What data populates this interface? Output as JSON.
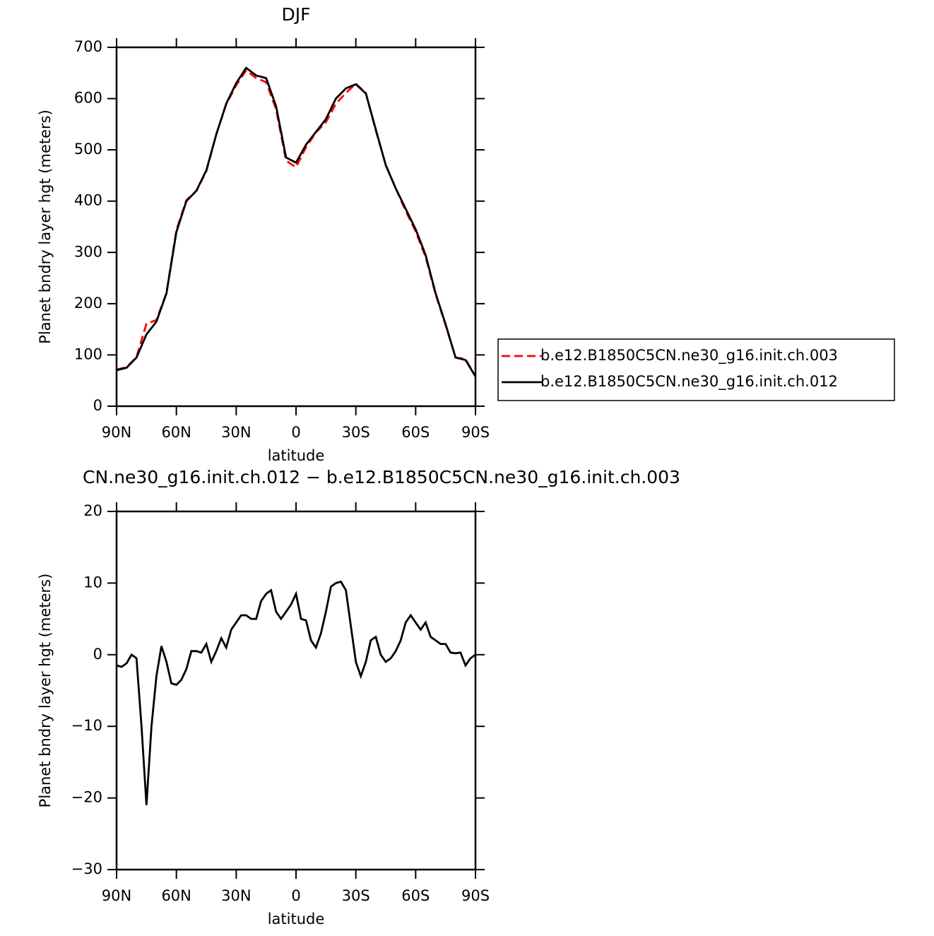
{
  "chart_data": [
    {
      "type": "line",
      "title": "DJF",
      "xlabel": "latitude",
      "ylabel": "Planet bndry layer hgt (meters)",
      "x": [
        90,
        85,
        80,
        75,
        70,
        65,
        60,
        55,
        50,
        45,
        40,
        35,
        30,
        25,
        20,
        15,
        10,
        5,
        0,
        -5,
        -10,
        -15,
        -20,
        -25,
        -30,
        -35,
        -40,
        -45,
        -50,
        -55,
        -60,
        -65,
        -70,
        -75,
        -80,
        -85,
        -90
      ],
      "series": [
        {
          "name": "b.e12.B1850C5CN.ne30_g16.init.ch.003",
          "color": "#ff0000",
          "linestyle": "dashed",
          "values": [
            71.5,
            76,
            95.5,
            161,
            168,
            221,
            344,
            402,
            420,
            458,
            530,
            589,
            626,
            655,
            640,
            632,
            579,
            479,
            466,
            505,
            534,
            554,
            590,
            611,
            629,
            611,
            538,
            471,
            425,
            381,
            341,
            291,
            218,
            158,
            95,
            92,
            58
          ]
        },
        {
          "name": "b.e12.B1850C5CN.ne30_g16.init.ch.012",
          "color": "#000000",
          "linestyle": "solid",
          "values": [
            70,
            75,
            95,
            140,
            165,
            220,
            340,
            400,
            420,
            460,
            530,
            590,
            630,
            660,
            645,
            640,
            585,
            485,
            475,
            510,
            535,
            560,
            600,
            620,
            628,
            610,
            540,
            470,
            425,
            385,
            345,
            295,
            220,
            160,
            95,
            90,
            58
          ]
        }
      ],
      "xlim": [
        90,
        -90
      ],
      "xticks": [
        {
          "value": 90,
          "label": "90N"
        },
        {
          "value": 60,
          "label": "60N"
        },
        {
          "value": 30,
          "label": "30N"
        },
        0,
        {
          "value": -30,
          "label": "30S"
        },
        {
          "value": -60,
          "label": "60S"
        },
        {
          "value": -90,
          "label": "90S"
        }
      ],
      "ylim": [
        0,
        700
      ],
      "yticks": [
        0,
        100,
        200,
        300,
        400,
        500,
        600,
        700
      ],
      "legend": "right"
    },
    {
      "type": "line",
      "title": "CN.ne30_g16.init.ch.012 − b.e12.B1850C5CN.ne30_g16.init.ch.003",
      "xlabel": "latitude",
      "ylabel": "Planet bndry layer hgt (meters)",
      "x": [
        90,
        87.5,
        85,
        82.5,
        80,
        77.5,
        75,
        72.5,
        70,
        67.5,
        65,
        62.5,
        60,
        57.5,
        55,
        52.5,
        50,
        47.5,
        45,
        42.5,
        40,
        37.5,
        35,
        32.5,
        30,
        27.5,
        25,
        22.5,
        20,
        17.5,
        15,
        12.5,
        10,
        7.5,
        5,
        2.5,
        0,
        -2.5,
        -5,
        -7.5,
        -10,
        -12.5,
        -15,
        -17.5,
        -20,
        -22.5,
        -25,
        -27.5,
        -30,
        -32.5,
        -35,
        -37.5,
        -40,
        -42.5,
        -45,
        -47.5,
        -50,
        -52.5,
        -55,
        -57.5,
        -60,
        -62.5,
        -65,
        -67.5,
        -70,
        -72.5,
        -75,
        -77.5,
        -80,
        -82.5,
        -85,
        -87.5,
        -90
      ],
      "series": [
        {
          "color": "#000000",
          "linestyle": "solid",
          "values": [
            -1.5,
            -1.7,
            -1.2,
            0,
            -0.5,
            -10,
            -21,
            -10,
            -3,
            1.2,
            -1,
            -4,
            -4.2,
            -3.5,
            -2,
            0.5,
            0.5,
            0.3,
            1.5,
            -1,
            0.5,
            2.3,
            1,
            3.5,
            4.5,
            5.5,
            5.5,
            5,
            5,
            7.5,
            8.5,
            9,
            6,
            5,
            6,
            7,
            8.5,
            5,
            4.8,
            2,
            1,
            3,
            6,
            9.5,
            10,
            10.2,
            9,
            4,
            -1,
            -3,
            -1,
            2,
            2.5,
            0,
            -1,
            -0.5,
            0.5,
            2,
            4.5,
            5.5,
            4.5,
            3.5,
            4.5,
            2.5,
            2,
            1.5,
            1.5,
            0.3,
            0.2,
            0.3,
            -1.5,
            -0.5,
            0
          ]
        }
      ],
      "xlim": [
        90,
        -90
      ],
      "xticks": [
        {
          "value": 90,
          "label": "90N"
        },
        {
          "value": 60,
          "label": "60N"
        },
        {
          "value": 30,
          "label": "30N"
        },
        0,
        {
          "value": -30,
          "label": "30S"
        },
        {
          "value": -60,
          "label": "60S"
        },
        {
          "value": -90,
          "label": "90S"
        }
      ],
      "ylim": [
        -30,
        20
      ],
      "yticks": [
        {
          "value": -30,
          "label": "−30"
        },
        {
          "value": -20,
          "label": "−20"
        },
        {
          "value": -10,
          "label": "−10"
        },
        0,
        10,
        20
      ]
    }
  ]
}
